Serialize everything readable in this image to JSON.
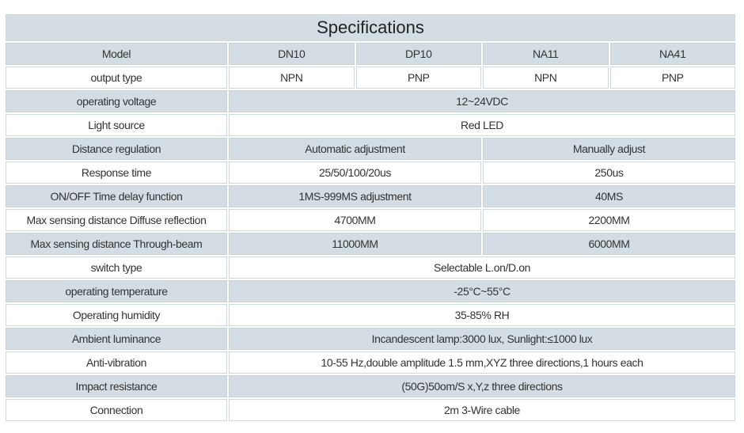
{
  "title": "Specifications",
  "table": {
    "header": {
      "label": "Model",
      "cells": [
        "DN10",
        "DP10",
        "NA11",
        "NA41"
      ]
    },
    "rows": [
      {
        "label": "output type",
        "cells": [
          "NPN",
          "PNP",
          "NPN",
          "PNP"
        ]
      },
      {
        "label": "operating voltage",
        "cells": [
          "12~24VDC"
        ]
      },
      {
        "label": "Light source",
        "cells": [
          "Red LED"
        ]
      },
      {
        "label": "Distance regulation",
        "cells": [
          "Automatic adjustment",
          "Manually adjust"
        ]
      },
      {
        "label": "Response time",
        "cells": [
          "25/50/100/20us",
          "250us"
        ]
      },
      {
        "label": "ON/OFF Time delay function",
        "cells": [
          "1MS-999MS adjustment",
          "40MS"
        ]
      },
      {
        "label": "Max sensing distance Diffuse reflection",
        "cells": [
          "4700MM",
          "2200MM"
        ]
      },
      {
        "label": "Max sensing distance Through-beam",
        "cells": [
          "11000MM",
          "6000MM"
        ]
      },
      {
        "label": "switch type",
        "cells": [
          "Selectable L.on/D.on"
        ]
      },
      {
        "label": "operating temperature",
        "cells": [
          "-25°C~55°C"
        ]
      },
      {
        "label": "Operating humidity",
        "cells": [
          "35-85% RH"
        ]
      },
      {
        "label": "Ambient luminance",
        "cells": [
          "Incandescent lamp:3000 lux, Sunlight:≤1000 lux"
        ]
      },
      {
        "label": "Anti-vibration",
        "cells": [
          "10-55 Hz,double amplitude 1.5 mm,XYZ three directions,1 hours each"
        ]
      },
      {
        "label": "Impact resistance",
        "cells": [
          "(50G)50om/S x,Y,z three directions"
        ]
      },
      {
        "label": "Connection",
        "cells": [
          "2m 3-Wire cable"
        ]
      }
    ]
  }
}
